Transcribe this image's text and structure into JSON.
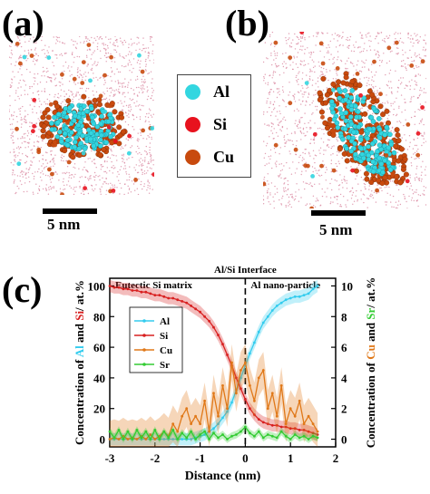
{
  "panels": {
    "a_label": "(a)",
    "b_label": "(b)",
    "c_label": "(c)",
    "scale_a": "5 nm",
    "scale_b": "5 nm"
  },
  "atom_legend": [
    {
      "label": "Al",
      "color": "#33d6e0"
    },
    {
      "label": "Si",
      "color": "#e8121e"
    },
    {
      "label": "Cu",
      "color": "#c84a0e"
    }
  ],
  "colors": {
    "matrix_dots": "#d9869f",
    "al": "#33ccee",
    "si": "#d82020",
    "cu": "#e07818",
    "sr": "#33cc33"
  },
  "chart_data": {
    "type": "line",
    "title": "Al/Si Interface",
    "annotations": [
      "Eutectic Si matrix",
      "Al nano-particle"
    ],
    "xlabel": "Distance (nm)",
    "ylabel_left": [
      "Concentration of ",
      "Al",
      " and ",
      "Si",
      "/ at.%"
    ],
    "ylabel_right": [
      "Concentration of ",
      "Cu",
      " and ",
      "Sr",
      "/ at.%"
    ],
    "xlim": [
      -3,
      2
    ],
    "ylim_left": [
      -5,
      105
    ],
    "ylim_right": [
      -0.5,
      10.5
    ],
    "xticks": [
      -3,
      -2,
      -1,
      0,
      1,
      2
    ],
    "yticks_left": [
      0,
      20,
      40,
      60,
      80,
      100
    ],
    "yticks_right": [
      0,
      2,
      4,
      6,
      8,
      10
    ],
    "interface_x": 0,
    "legend_position": "upper-left",
    "x": [
      -3.0,
      -2.9,
      -2.8,
      -2.7,
      -2.6,
      -2.5,
      -2.4,
      -2.3,
      -2.2,
      -2.1,
      -2.0,
      -1.9,
      -1.8,
      -1.7,
      -1.6,
      -1.5,
      -1.4,
      -1.3,
      -1.2,
      -1.1,
      -1.0,
      -0.9,
      -0.8,
      -0.7,
      -0.6,
      -0.5,
      -0.4,
      -0.3,
      -0.2,
      -0.1,
      0.0,
      0.1,
      0.2,
      0.3,
      0.4,
      0.5,
      0.6,
      0.7,
      0.8,
      0.9,
      1.0,
      1.1,
      1.2,
      1.3,
      1.4,
      1.5,
      1.6
    ],
    "series": [
      {
        "name": "Al",
        "axis": "left",
        "color": "#33ccee",
        "values": [
          0,
          0,
          0,
          0,
          0,
          0,
          0,
          0,
          0,
          0,
          0,
          0,
          0,
          0,
          0,
          0,
          0,
          0,
          0,
          1,
          2,
          3,
          5,
          7,
          10,
          14,
          18,
          24,
          32,
          40,
          48,
          56,
          63,
          70,
          76,
          80,
          84,
          87,
          89,
          91,
          92,
          93,
          93,
          94,
          95,
          98,
          100
        ]
      },
      {
        "name": "Si",
        "axis": "left",
        "color": "#d82020",
        "values": [
          100,
          99,
          99,
          98,
          98,
          97,
          97,
          96,
          96,
          95,
          94,
          94,
          93,
          92,
          92,
          91,
          90,
          89,
          87,
          85,
          83,
          80,
          77,
          73,
          68,
          62,
          55,
          48,
          40,
          33,
          26,
          20,
          16,
          13,
          11,
          10,
          9,
          9,
          8,
          8,
          7,
          7,
          6,
          6,
          5,
          4,
          3
        ]
      },
      {
        "name": "Cu",
        "axis": "right",
        "color": "#e07818",
        "values": [
          0,
          0.1,
          0,
          0.2,
          0,
          0.1,
          0,
          0.2,
          0,
          0.3,
          0,
          0.2,
          0.5,
          0.2,
          1.0,
          0.5,
          1.5,
          2.0,
          1.0,
          1.5,
          1.0,
          2.5,
          0.5,
          3.0,
          1.5,
          3.5,
          2.0,
          5.0,
          3.0,
          4.5,
          5.0,
          3.5,
          2.5,
          4.0,
          4.5,
          2.0,
          3.0,
          1.5,
          3.5,
          1.0,
          2.0,
          1.5,
          2.5,
          1.0,
          1.5,
          1.0,
          0.5
        ]
      },
      {
        "name": "Sr",
        "axis": "right",
        "color": "#33cc33",
        "values": [
          0.5,
          0.1,
          0.6,
          0,
          0.5,
          0,
          0.6,
          0.1,
          0.5,
          0,
          0.6,
          0,
          0.5,
          0.1,
          0.6,
          0,
          0.4,
          0.1,
          0.5,
          0,
          0.3,
          0.5,
          0,
          0.4,
          0.1,
          0.3,
          0,
          0.2,
          0.3,
          0.5,
          0.8,
          0.4,
          0.2,
          0.5,
          0.1,
          0.3,
          0.2,
          0.1,
          0.5,
          0.2,
          0,
          0.3,
          0.1,
          0.2,
          0,
          0.2,
          0.1
        ]
      }
    ]
  }
}
